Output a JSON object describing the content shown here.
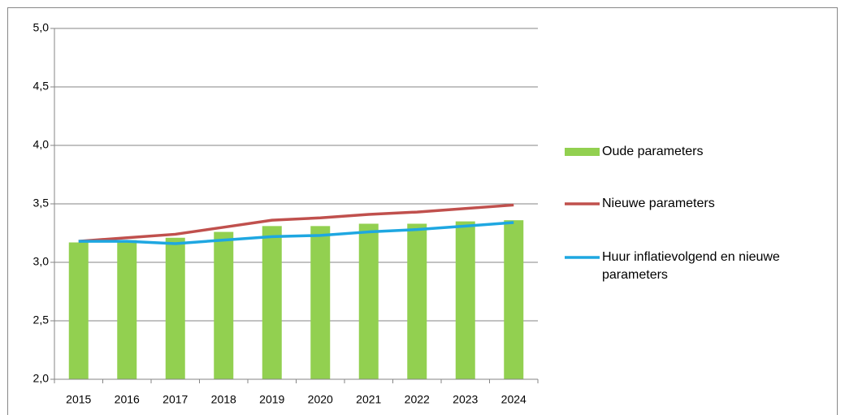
{
  "chart_data": {
    "type": "bar",
    "categories": [
      "2015",
      "2016",
      "2017",
      "2018",
      "2019",
      "2020",
      "2021",
      "2022",
      "2023",
      "2024"
    ],
    "series": [
      {
        "name": "Oude parameters",
        "type": "bar",
        "color": "#92d050",
        "values": [
          3.17,
          3.19,
          3.21,
          3.26,
          3.31,
          3.31,
          3.33,
          3.33,
          3.35,
          3.36
        ]
      },
      {
        "name": "Nieuwe parameters",
        "type": "line",
        "color": "#c0504d",
        "values": [
          3.18,
          3.21,
          3.24,
          3.3,
          3.36,
          3.38,
          3.41,
          3.43,
          3.46,
          3.49
        ]
      },
      {
        "name": "Huur inflatievolgend en nieuwe parameters",
        "type": "line",
        "color": "#1ea7e1",
        "values": [
          3.18,
          3.18,
          3.16,
          3.19,
          3.22,
          3.23,
          3.26,
          3.28,
          3.31,
          3.34
        ]
      }
    ],
    "ylim": [
      2.0,
      5.0
    ],
    "yticks": [
      {
        "value": 2.0,
        "label": "2,0"
      },
      {
        "value": 2.5,
        "label": "2,5"
      },
      {
        "value": 3.0,
        "label": "3,0"
      },
      {
        "value": 3.5,
        "label": "3,5"
      },
      {
        "value": 4.0,
        "label": "4,0"
      },
      {
        "value": 4.5,
        "label": "4,5"
      },
      {
        "value": 5.0,
        "label": "5,0"
      }
    ],
    "grid": true,
    "legend": "right"
  }
}
